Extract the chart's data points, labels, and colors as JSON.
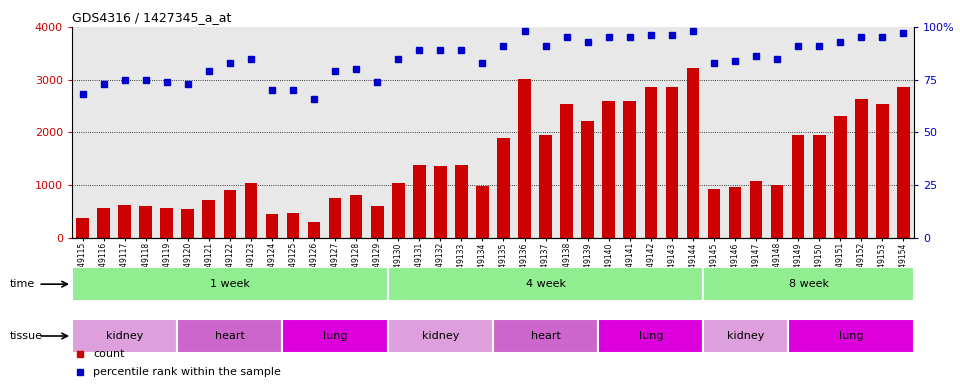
{
  "title": "GDS4316 / 1427345_a_at",
  "samples": [
    "GSM949115",
    "GSM949116",
    "GSM949117",
    "GSM949118",
    "GSM949119",
    "GSM949120",
    "GSM949121",
    "GSM949122",
    "GSM949123",
    "GSM949124",
    "GSM949125",
    "GSM949126",
    "GSM949127",
    "GSM949128",
    "GSM949129",
    "GSM949130",
    "GSM949131",
    "GSM949132",
    "GSM949133",
    "GSM949134",
    "GSM949135",
    "GSM949136",
    "GSM949137",
    "GSM949138",
    "GSM949139",
    "GSM949140",
    "GSM949141",
    "GSM949142",
    "GSM949143",
    "GSM949144",
    "GSM949145",
    "GSM949146",
    "GSM949147",
    "GSM949148",
    "GSM949149",
    "GSM949150",
    "GSM949151",
    "GSM949152",
    "GSM949153",
    "GSM949154"
  ],
  "counts": [
    380,
    570,
    620,
    600,
    570,
    560,
    730,
    920,
    1040,
    460,
    470,
    310,
    760,
    810,
    600,
    1040,
    1380,
    1370,
    1380,
    980,
    1900,
    3020,
    1960,
    2530,
    2210,
    2590,
    2600,
    2870,
    2870,
    3220,
    930,
    970,
    1080,
    1000,
    1950,
    1960,
    2310,
    2630,
    2530,
    2860
  ],
  "percentile": [
    68,
    73,
    75,
    75,
    74,
    73,
    79,
    83,
    85,
    70,
    70,
    66,
    79,
    80,
    74,
    85,
    89,
    89,
    89,
    83,
    91,
    98,
    91,
    95,
    93,
    95,
    95,
    96,
    96,
    98,
    83,
    84,
    86,
    85,
    91,
    91,
    93,
    95,
    95,
    97
  ],
  "bar_color": "#cc0000",
  "dot_color": "#0000cc",
  "ylim_left": [
    0,
    4000
  ],
  "ylim_right": [
    0,
    100
  ],
  "yticks_left": [
    0,
    1000,
    2000,
    3000,
    4000
  ],
  "yticks_right": [
    0,
    25,
    50,
    75,
    100
  ],
  "time_groups": [
    {
      "label": "1 week",
      "start": 0,
      "end": 14,
      "color": "#90ee90"
    },
    {
      "label": "4 week",
      "start": 15,
      "end": 29,
      "color": "#90ee90"
    },
    {
      "label": "8 week",
      "start": 30,
      "end": 39,
      "color": "#90ee90"
    }
  ],
  "tissue_groups": [
    {
      "label": "kidney",
      "start": 0,
      "end": 4,
      "color": "#dda0dd"
    },
    {
      "label": "heart",
      "start": 5,
      "end": 9,
      "color": "#cc66cc"
    },
    {
      "label": "lung",
      "start": 10,
      "end": 14,
      "color": "#dd00dd"
    },
    {
      "label": "kidney",
      "start": 15,
      "end": 19,
      "color": "#dda0dd"
    },
    {
      "label": "heart",
      "start": 20,
      "end": 24,
      "color": "#cc66cc"
    },
    {
      "label": "lung",
      "start": 25,
      "end": 29,
      "color": "#dd00dd"
    },
    {
      "label": "kidney",
      "start": 30,
      "end": 33,
      "color": "#dda0dd"
    },
    {
      "label": "lung",
      "start": 34,
      "end": 39,
      "color": "#dd00dd"
    }
  ],
  "legend_items": [
    {
      "label": "count",
      "color": "#cc0000",
      "marker": "s"
    },
    {
      "label": "percentile rank within the sample",
      "color": "#0000cc",
      "marker": "s"
    }
  ],
  "bg_color": "#e8e8e8"
}
